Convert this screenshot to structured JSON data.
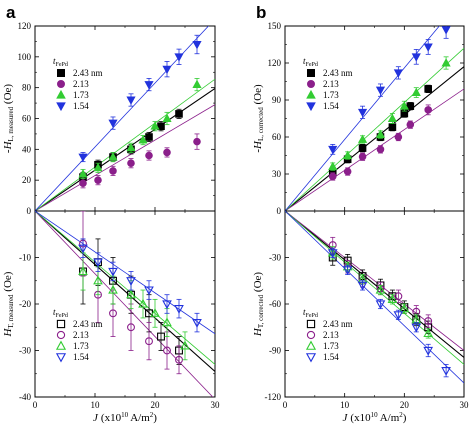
{
  "panels": [
    {
      "letter": "a"
    },
    {
      "letter": "b"
    }
  ],
  "x_axis": {
    "label_var": "J",
    "label_unit": "(x10",
    "label_exp": "10",
    "label_unit2": " A/m",
    "label_exp2": "2",
    "label_close": ")",
    "ticks": [
      "0",
      "10",
      "20",
      "30"
    ]
  },
  "legend_title": {
    "var": "t",
    "sub": "FePd"
  },
  "series_names": [
    "2.43 nm",
    "2.13",
    "1.73",
    "1.54"
  ],
  "colors": {
    "s0": "#000000",
    "s1": "#8b1f8b",
    "s2": "#33cc33",
    "s3": "#2233dd"
  },
  "chart_data": [
    {
      "id": "a-top",
      "type": "scatter",
      "ylabel": {
        "pre": "-H",
        "sub": "L, measured",
        "unit": " (Oe)"
      },
      "xlim": [
        0,
        30
      ],
      "ylim": [
        0,
        120
      ],
      "yticks": [
        "0",
        "20",
        "40",
        "60",
        "80",
        "100",
        "120"
      ],
      "marker": "filled",
      "series": [
        {
          "name": "2.43 nm",
          "x": [
            8,
            10.5,
            13,
            16,
            19,
            21,
            24
          ],
          "y": [
            22,
            30,
            35,
            40,
            48,
            55,
            63
          ],
          "err": [
            3,
            3,
            3,
            3,
            3,
            3,
            3
          ],
          "fit": [
            0,
            2.65
          ]
        },
        {
          "name": "2.13",
          "x": [
            8,
            10.5,
            13,
            16,
            19,
            22,
            27
          ],
          "y": [
            18,
            20,
            26,
            31,
            36,
            38,
            45
          ],
          "err": [
            3,
            3,
            3,
            3,
            3,
            3,
            5
          ],
          "fit": [
            0,
            2.3
          ]
        },
        {
          "name": "1.73",
          "x": [
            8,
            10.5,
            13,
            16,
            18,
            20,
            22,
            27
          ],
          "y": [
            24,
            28,
            35,
            41,
            46,
            55,
            60,
            82
          ],
          "err": [
            3,
            3,
            3,
            3,
            3,
            3,
            4,
            4
          ],
          "fit": [
            0,
            2.85
          ]
        },
        {
          "name": "1.54",
          "x": [
            8,
            13,
            16,
            19,
            22,
            24,
            27
          ],
          "y": [
            35,
            57,
            72,
            82,
            92,
            100,
            108
          ],
          "err": [
            3,
            4,
            4,
            4,
            5,
            5,
            6
          ],
          "fit": [
            0,
            4.15
          ]
        }
      ]
    },
    {
      "id": "a-bottom",
      "type": "scatter",
      "ylabel": {
        "pre": "H",
        "sub": "T, measured",
        "unit": " (Oe)"
      },
      "xlim": [
        0,
        30
      ],
      "ylim": [
        -40,
        0
      ],
      "yticks": [
        "0",
        "-10",
        "-20",
        "-30",
        "-40"
      ],
      "marker": "open",
      "series": [
        {
          "name": "2.43 nm",
          "x": [
            8,
            10.5,
            13,
            16,
            19,
            21,
            24
          ],
          "y": [
            -13,
            -11,
            -15,
            -18,
            -22,
            -27,
            -30
          ],
          "err": [
            7,
            5,
            5,
            4,
            4,
            3,
            3
          ],
          "fit": [
            0,
            -1.15
          ]
        },
        {
          "name": "2.13",
          "x": [
            8,
            10.5,
            13,
            16,
            19,
            22,
            24
          ],
          "y": [
            -7,
            -18,
            -22,
            -25,
            -28,
            -30,
            -32
          ],
          "err": [
            7,
            6,
            5,
            5,
            4,
            4,
            3
          ],
          "fit": [
            0,
            -1.35
          ]
        },
        {
          "name": "1.73",
          "x": [
            8,
            10.5,
            13,
            16,
            18,
            20,
            22,
            25
          ],
          "y": [
            -13,
            -15,
            -17,
            -18,
            -20,
            -22,
            -24,
            -29
          ],
          "err": [
            4,
            3,
            3,
            3,
            3,
            3,
            3,
            3
          ],
          "fit": [
            0,
            -1.1
          ]
        },
        {
          "name": "1.54",
          "x": [
            8,
            10.5,
            13,
            16,
            19,
            22,
            24,
            27
          ],
          "y": [
            -8,
            -11,
            -13,
            -15,
            -17,
            -20,
            -21,
            -24
          ],
          "err": [
            2,
            2,
            2,
            2,
            2,
            2,
            2,
            2
          ],
          "fit": [
            0,
            -0.88
          ]
        }
      ]
    },
    {
      "id": "b-top",
      "type": "scatter",
      "ylabel": {
        "pre": "-H",
        "sub": "L, corrected",
        "unit": " (Oe)"
      },
      "xlim": [
        0,
        30
      ],
      "ylim": [
        0,
        150
      ],
      "yticks": [
        "0",
        "30",
        "60",
        "90",
        "120",
        "150"
      ],
      "marker": "filled",
      "series": [
        {
          "name": "2.43 nm",
          "x": [
            8,
            10.5,
            13,
            16,
            18,
            20,
            21,
            24
          ],
          "y": [
            31,
            42,
            51,
            60,
            68,
            79,
            85,
            99
          ],
          "err": [
            3,
            3,
            3,
            3,
            3,
            3,
            3,
            3
          ],
          "fit": [
            0,
            3.9
          ]
        },
        {
          "name": "2.13",
          "x": [
            8,
            10.5,
            13,
            16,
            19,
            21,
            24
          ],
          "y": [
            28,
            32,
            44,
            50,
            60,
            70,
            82
          ],
          "err": [
            3,
            3,
            3,
            3,
            3,
            3,
            4
          ],
          "fit": [
            0,
            3.3
          ]
        },
        {
          "name": "1.73",
          "x": [
            8,
            10.5,
            13,
            16,
            18,
            20,
            22,
            27
          ],
          "y": [
            36,
            45,
            58,
            62,
            75,
            85,
            96,
            120
          ],
          "err": [
            3,
            3,
            3,
            3,
            4,
            4,
            4,
            5
          ],
          "fit": [
            0,
            4.4
          ]
        },
        {
          "name": "1.54",
          "x": [
            8,
            13,
            16,
            19,
            22,
            24,
            27
          ],
          "y": [
            50,
            80,
            98,
            112,
            125,
            133,
            147
          ],
          "err": [
            4,
            5,
            5,
            5,
            6,
            6,
            7
          ],
          "fit": [
            0,
            5.8
          ]
        }
      ]
    },
    {
      "id": "b-bottom",
      "type": "scatter",
      "ylabel": {
        "pre": "H",
        "sub": "T, corrected",
        "unit": " (Oe)"
      },
      "xlim": [
        0,
        30
      ],
      "ylim": [
        -120,
        0
      ],
      "yticks": [
        "0",
        "-30",
        "-60",
        "-90",
        "-120"
      ],
      "marker": "open",
      "series": [
        {
          "name": "2.43 nm",
          "x": [
            8,
            10.5,
            13,
            16,
            18,
            20,
            22,
            24
          ],
          "y": [
            -30,
            -32,
            -42,
            -48,
            -55,
            -62,
            -70,
            -75
          ],
          "err": [
            5,
            4,
            4,
            4,
            4,
            4,
            4,
            4
          ],
          "fit": [
            0,
            -3.15
          ]
        },
        {
          "name": "2.13",
          "x": [
            8,
            10.5,
            13,
            16,
            19,
            22,
            24
          ],
          "y": [
            -22,
            -36,
            -45,
            -50,
            -55,
            -65,
            -71
          ],
          "err": [
            5,
            4,
            4,
            4,
            4,
            4,
            4
          ],
          "fit": [
            0,
            -3.0
          ]
        },
        {
          "name": "1.73",
          "x": [
            8,
            10.5,
            13,
            16,
            18,
            20,
            22,
            24
          ],
          "y": [
            -27,
            -36,
            -44,
            -51,
            -57,
            -63,
            -70,
            -79
          ],
          "err": [
            4,
            3,
            3,
            3,
            3,
            3,
            3,
            3
          ],
          "fit": [
            0,
            -3.3
          ]
        },
        {
          "name": "1.54",
          "x": [
            8,
            10.5,
            13,
            16,
            19,
            22,
            24,
            27
          ],
          "y": [
            -27,
            -38,
            -48,
            -60,
            -67,
            -75,
            -90,
            -103
          ],
          "err": [
            3,
            3,
            3,
            3,
            3,
            3,
            4,
            4
          ],
          "fit": [
            0,
            -3.7
          ]
        }
      ]
    }
  ]
}
